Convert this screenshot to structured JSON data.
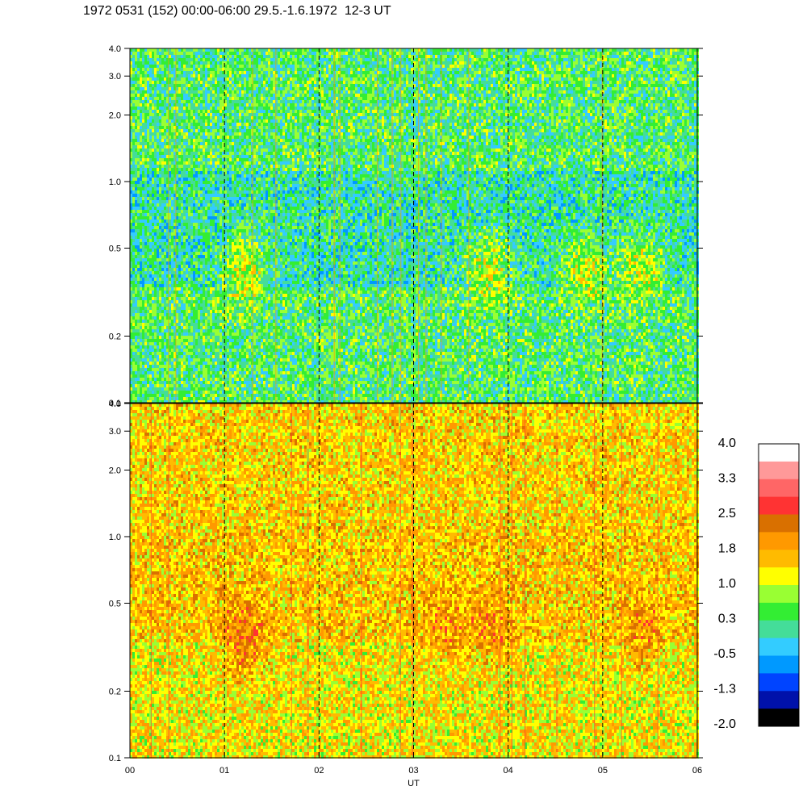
{
  "title": "1972 0531 (152) 00:00-06:00 29.5.-1.6.1972  12-3 UT",
  "chart_data": [
    {
      "type": "heatmap",
      "panel": "upper",
      "x_ticks": [
        "00",
        "01",
        "02",
        "03",
        "04",
        "05",
        "06"
      ],
      "x_range": [
        0,
        6
      ],
      "y_scale": "log",
      "y_range": [
        0.1,
        4.0
      ],
      "y_ticks": [
        "0.1",
        "0.2",
        "0.5",
        "1.0",
        "2.0",
        "3.0",
        "4.0"
      ],
      "dashed_vlines": [
        1,
        2,
        3,
        4,
        5
      ],
      "dominant_levels": {
        "high_freq": 0.3,
        "mid_freq": 0.0,
        "low_freq": 0.3
      },
      "bright_spots": [
        {
          "x": 1.2,
          "y": 0.4,
          "level": 1.0
        },
        {
          "x": 3.8,
          "y": 0.4,
          "level": 1.0
        },
        {
          "x": 4.8,
          "y": 0.4,
          "level": 1.0
        },
        {
          "x": 5.4,
          "y": 0.4,
          "level": 1.0
        }
      ]
    },
    {
      "type": "heatmap",
      "panel": "lower",
      "x_ticks": [
        "00",
        "01",
        "02",
        "03",
        "04",
        "05",
        "06"
      ],
      "x_range": [
        0,
        6
      ],
      "x_label": "UT",
      "y_scale": "log",
      "y_range": [
        0.1,
        4.0
      ],
      "y_ticks": [
        "0.1",
        "0.2",
        "0.5",
        "1.0",
        "2.0",
        "3.0",
        "4.0"
      ],
      "dashed_vlines": [
        1,
        2,
        3,
        4,
        5
      ],
      "dominant_levels": {
        "high_freq": 1.5,
        "mid_freq": 1.6,
        "low_freq": 1.3
      },
      "bright_spots": [
        {
          "x": 1.2,
          "y": 0.35,
          "level": 2.3
        },
        {
          "x": 3.3,
          "y": 0.4,
          "level": 2.0
        },
        {
          "x": 3.8,
          "y": 0.4,
          "level": 2.0
        },
        {
          "x": 5.4,
          "y": 0.4,
          "level": 2.0
        }
      ]
    }
  ],
  "colorbar": {
    "labels": [
      "4.0",
      "3.3",
      "2.5",
      "1.8",
      "1.0",
      "0.3",
      "-0.5",
      "-1.3",
      "-2.0"
    ],
    "colors": [
      "#ffffff",
      "#ff9999",
      "#ff6666",
      "#ff3333",
      "#d97000",
      "#ff9900",
      "#ffbb00",
      "#ffff00",
      "#99ff33",
      "#33ee33",
      "#44dd99",
      "#33ccff",
      "#0099ff",
      "#0044ff",
      "#0011aa",
      "#000000"
    ]
  }
}
